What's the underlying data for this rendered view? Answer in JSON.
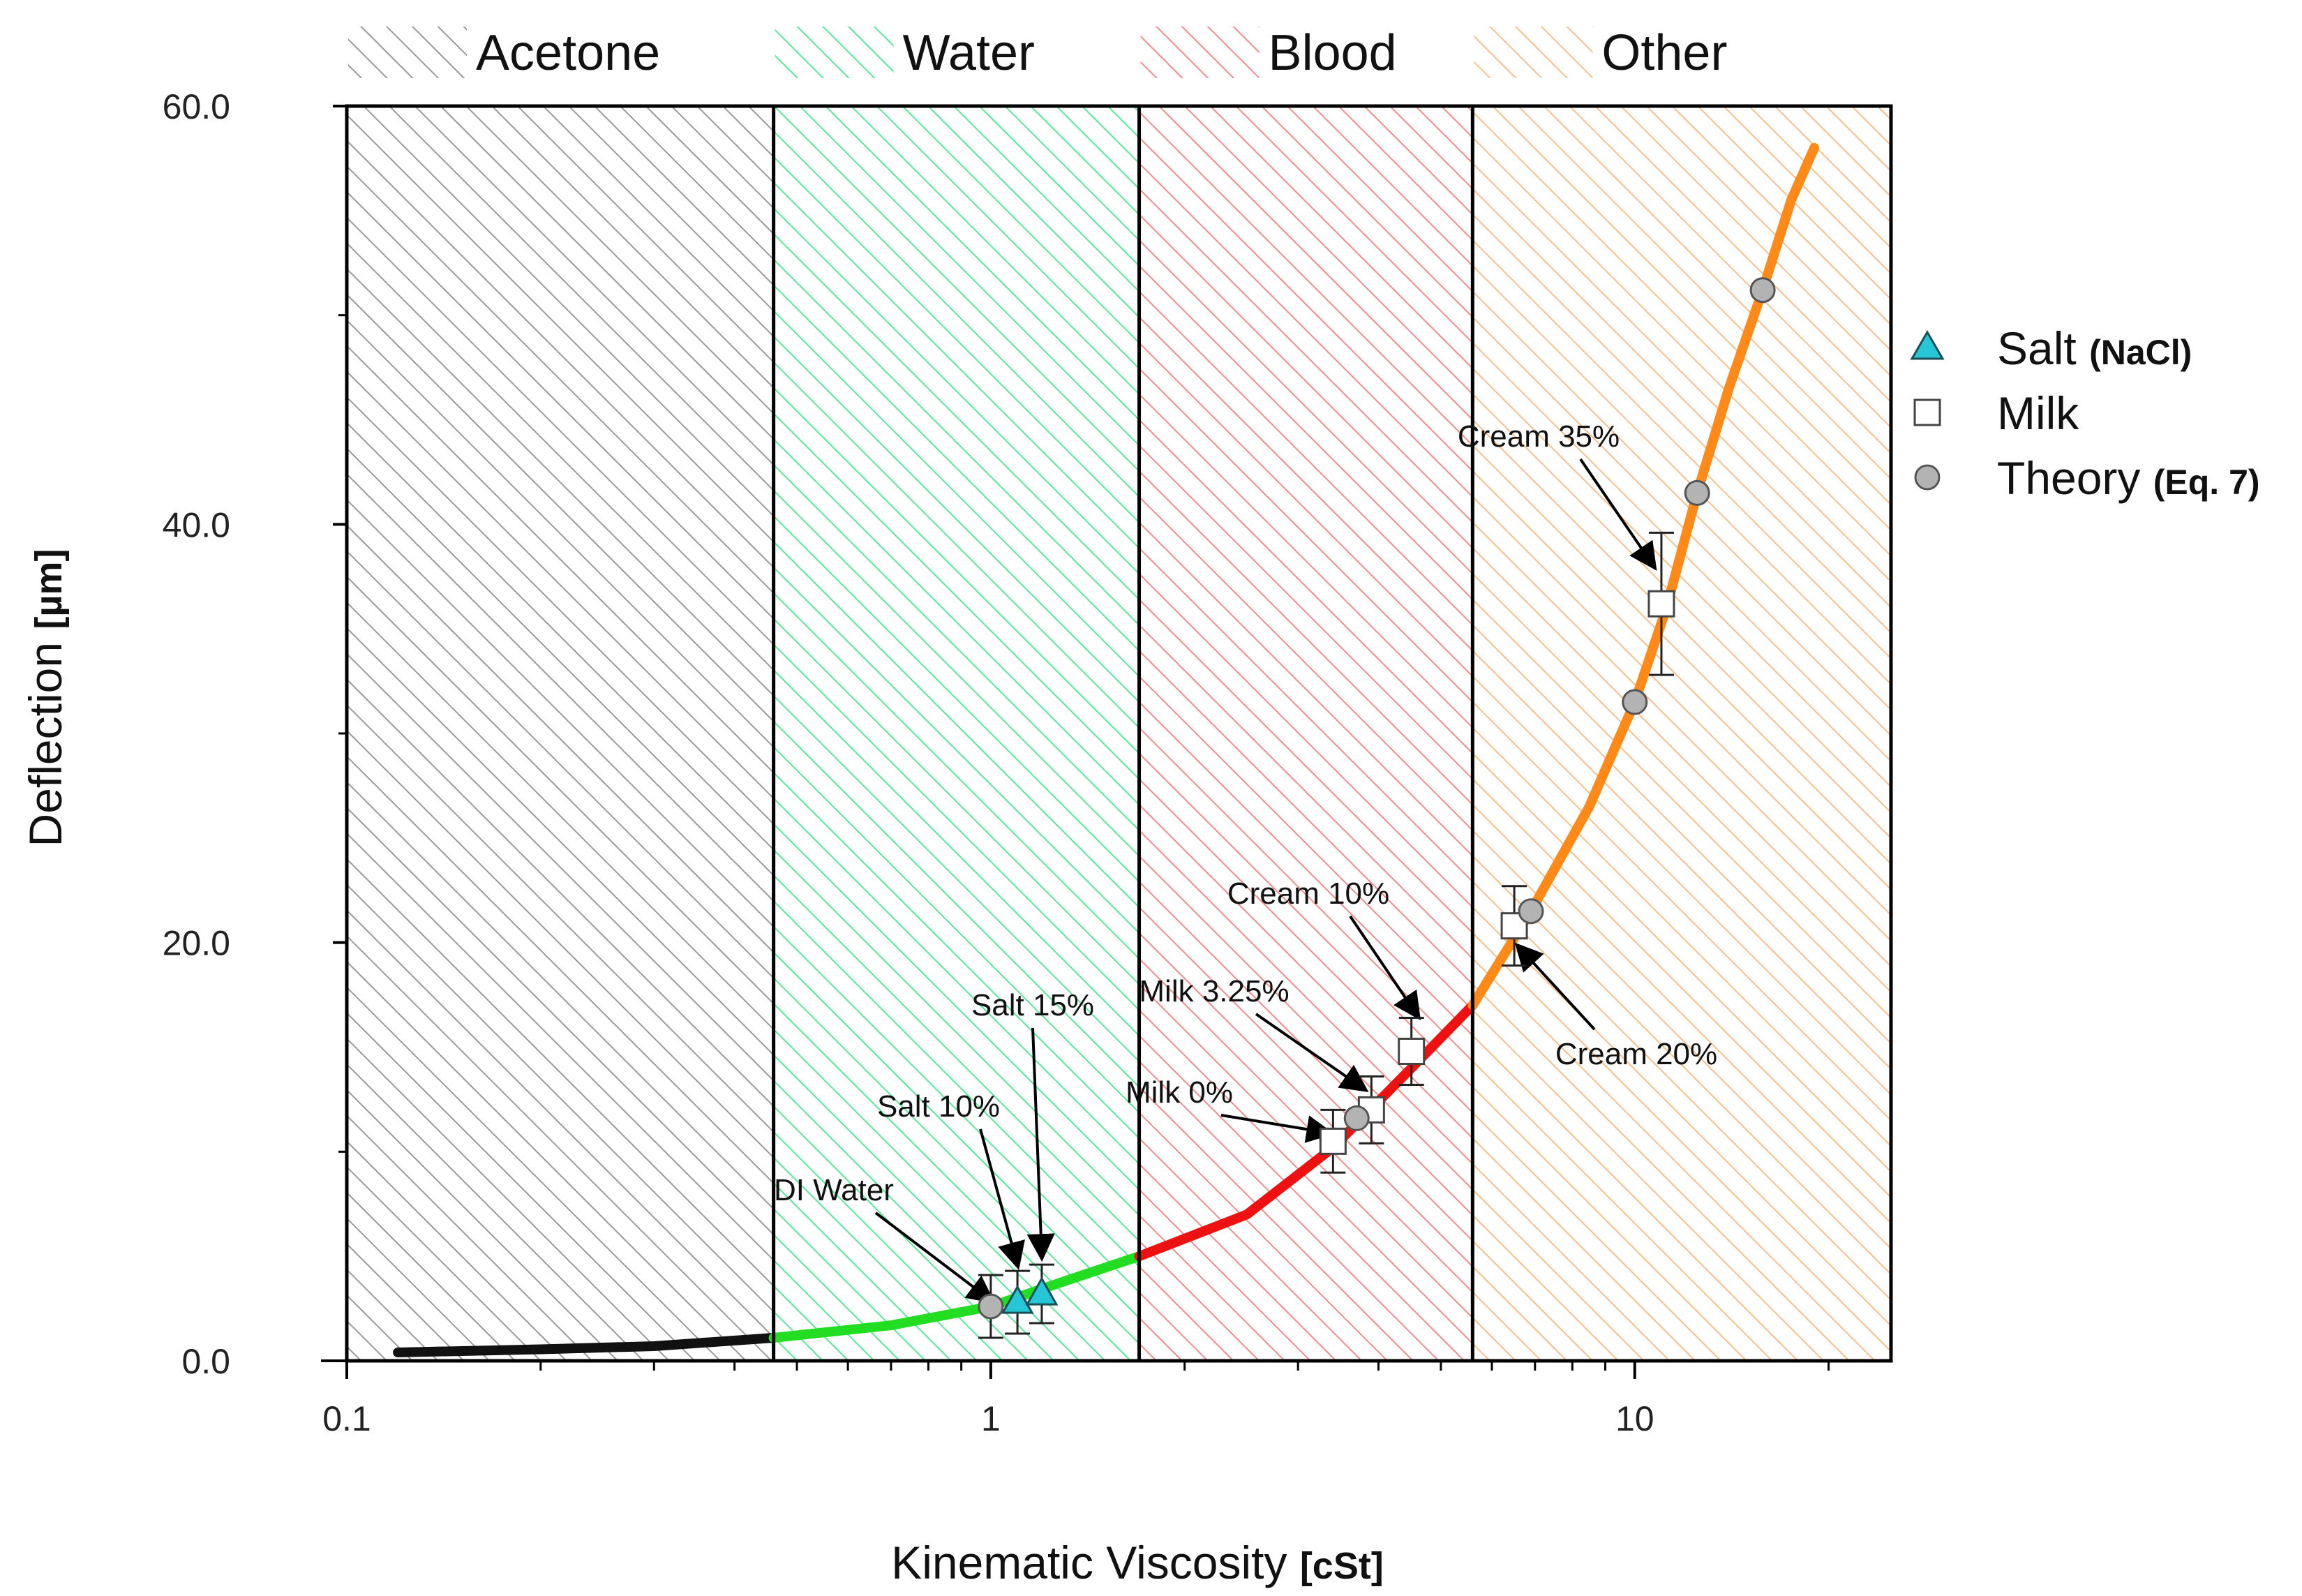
{
  "chart_data": {
    "type": "scatter",
    "xscale": "log",
    "xlim": [
      0.1,
      25
    ],
    "ylim": [
      0,
      60
    ],
    "x_ticks": [
      {
        "value": 0.1,
        "label": "0.1"
      },
      {
        "value": 1,
        "label": "1"
      },
      {
        "value": 10,
        "label": "10"
      }
    ],
    "y_ticks": [
      {
        "value": 0,
        "label": "0.0"
      },
      {
        "value": 20,
        "label": "20.0"
      },
      {
        "value": 40,
        "label": "40.0"
      },
      {
        "value": 60,
        "label": "60.0"
      }
    ],
    "xlabel": "Kinematic Viscosity",
    "xlabel_unit": "[cSt]",
    "ylabel": "Deflection",
    "ylabel_unit": "[µm]",
    "grid": false,
    "legend_position": "right",
    "regions": [
      {
        "label": "Acetone",
        "from": 0.1,
        "to": 0.46,
        "color": "#9a9a9a"
      },
      {
        "label": "Water",
        "from": 0.46,
        "to": 1.7,
        "color": "#57e89a"
      },
      {
        "label": "Blood",
        "from": 1.7,
        "to": 5.6,
        "color": "#f08c8c"
      },
      {
        "label": "Other",
        "from": 5.6,
        "to": 25,
        "color": "#f7bf8c"
      }
    ],
    "series": [
      {
        "name": "Salt",
        "name_suffix": "(NaCl)",
        "marker": "triangle",
        "color": "#27c6d6",
        "points": [
          {
            "x": 1.1,
            "y": 2.8,
            "err": 1.5
          },
          {
            "x": 1.2,
            "y": 3.2,
            "err": 1.4
          }
        ]
      },
      {
        "name": "Milk",
        "marker": "square",
        "color": "#ffffff",
        "points": [
          {
            "x": 3.4,
            "y": 10.5,
            "err": 1.5
          },
          {
            "x": 3.9,
            "y": 12.0,
            "err": 1.6
          },
          {
            "x": 4.5,
            "y": 14.8,
            "err": 1.6
          },
          {
            "x": 6.5,
            "y": 20.8,
            "err": 1.9
          },
          {
            "x": 11.0,
            "y": 36.2,
            "err": 3.4
          }
        ]
      },
      {
        "name": "Theory",
        "name_suffix": "(Eq. 7)",
        "marker": "circle",
        "color": "#b3b3b3",
        "points": [
          {
            "x": 1.0,
            "y": 2.6,
            "err": 1.5
          },
          {
            "x": 3.7,
            "y": 11.6
          },
          {
            "x": 6.9,
            "y": 21.5
          },
          {
            "x": 10.0,
            "y": 31.5
          },
          {
            "x": 12.5,
            "y": 41.5
          },
          {
            "x": 15.8,
            "y": 51.2
          }
        ]
      }
    ],
    "curve_segments": [
      {
        "color": "#111111",
        "points": [
          [
            0.12,
            0.4
          ],
          [
            0.2,
            0.55
          ],
          [
            0.3,
            0.7
          ],
          [
            0.46,
            1.1
          ]
        ]
      },
      {
        "color": "#22dd22",
        "points": [
          [
            0.46,
            1.1
          ],
          [
            0.7,
            1.7
          ],
          [
            1.0,
            2.6
          ],
          [
            1.3,
            3.8
          ],
          [
            1.7,
            5.0
          ]
        ]
      },
      {
        "color": "#ee1111",
        "points": [
          [
            1.7,
            5.0
          ],
          [
            2.5,
            7.0
          ],
          [
            3.4,
            10.2
          ],
          [
            4.5,
            14.0
          ],
          [
            5.6,
            17.0
          ]
        ]
      },
      {
        "color": "#ff8a1a",
        "points": [
          [
            5.6,
            17.0
          ],
          [
            6.9,
            21.5
          ],
          [
            8.5,
            26.5
          ],
          [
            10.0,
            31.5
          ],
          [
            11.2,
            36.0
          ],
          [
            12.5,
            41.5
          ],
          [
            14.0,
            46.5
          ],
          [
            15.8,
            51.2
          ],
          [
            17.5,
            55.5
          ],
          [
            19.0,
            58.0
          ]
        ]
      }
    ],
    "annotations": [
      {
        "text": "DI Water",
        "target_x": 1.0,
        "target_y": 2.9
      },
      {
        "text": "Salt 10%",
        "target_x": 1.1,
        "target_y": 4.6
      },
      {
        "text": "Salt 15%",
        "target_x": 1.2,
        "target_y": 5.0
      },
      {
        "text": "Milk 0%",
        "target_x": 3.35,
        "target_y": 10.9
      },
      {
        "text": "Milk 3.25%",
        "target_x": 3.8,
        "target_y": 13.0
      },
      {
        "text": "Cream 10%",
        "target_x": 4.6,
        "target_y": 16.5
      },
      {
        "text": "Cream 20%",
        "target_x": 6.6,
        "target_y": 19.8
      },
      {
        "text": "Cream 35%",
        "target_x": 10.7,
        "target_y": 38.0
      }
    ]
  }
}
